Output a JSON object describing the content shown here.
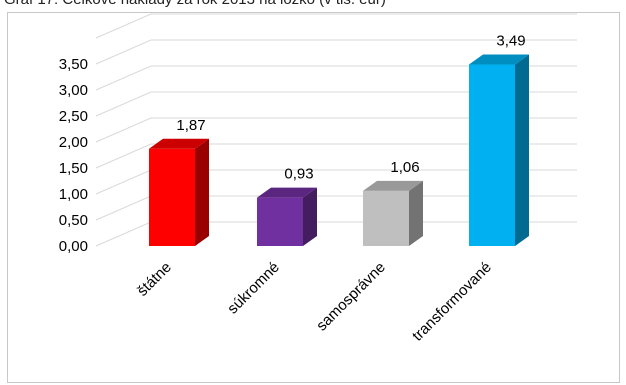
{
  "title": "Graf 17: Celkové náklady za rok 2013 na lôžko (v tis. eur)",
  "chart_data": {
    "type": "bar",
    "categories": [
      "štátne",
      "súkromné",
      "samosprávne",
      "transformované"
    ],
    "values": [
      1.87,
      0.93,
      1.06,
      3.49
    ],
    "value_labels": [
      "1,87",
      "0,93",
      "1,06",
      "3,49"
    ],
    "colors": [
      "#ff0000",
      "#7030a0",
      "#bfbfbf",
      "#00b0f0"
    ],
    "y_tick_labels": [
      "0,00",
      "0,50",
      "1,00",
      "1,50",
      "2,00",
      "2,50",
      "3,00",
      "3,50"
    ],
    "ylim": [
      0,
      3.5
    ],
    "y_step": 0.5,
    "grid": true,
    "style": "3d-column",
    "title": "Graf 17: Celkové náklady za rok 2013 na lôžko (v tis. eur)",
    "xlabel": "",
    "ylabel": ""
  }
}
